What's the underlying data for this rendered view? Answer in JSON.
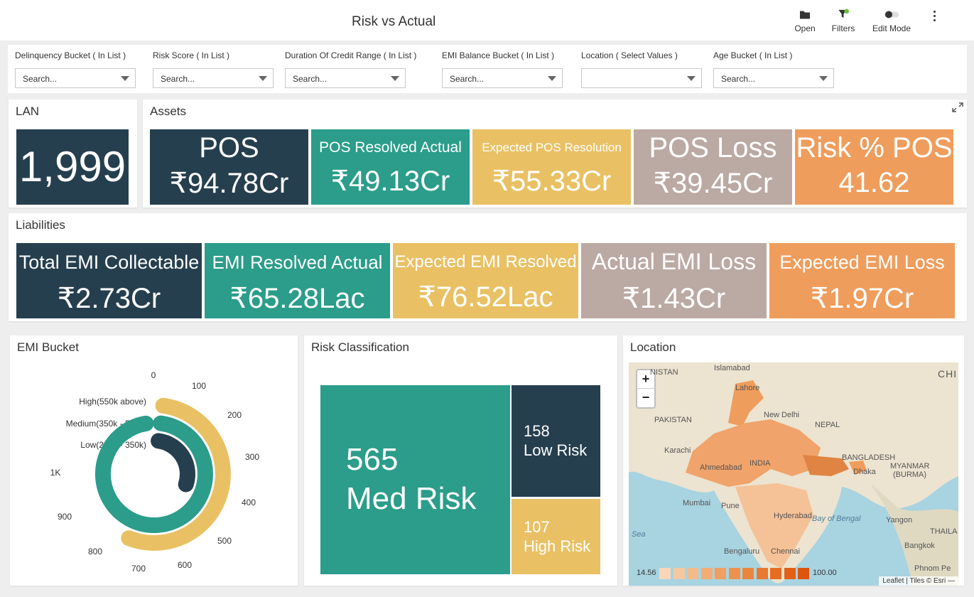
{
  "header": {
    "title": "Risk vs Actual",
    "tools": {
      "open": "Open",
      "filters": "Filters",
      "edit_mode": "Edit Mode"
    }
  },
  "filters": [
    {
      "label": "Delinquency Bucket ( In List )",
      "placeholder": "Search..."
    },
    {
      "label": "Risk Score ( In List )",
      "placeholder": "Search..."
    },
    {
      "label": "Duration Of Credit Range ( In List )",
      "placeholder": "Search..."
    },
    {
      "label": "EMI Balance Bucket ( In List )",
      "placeholder": "Search..."
    },
    {
      "label": "Location ( Select Values )",
      "placeholder": ""
    },
    {
      "label": "Age Bucket ( In List )",
      "placeholder": "Search..."
    }
  ],
  "lan": {
    "title": "LAN",
    "value": "1,999"
  },
  "assets": {
    "title": "Assets",
    "tiles": [
      {
        "label": "POS",
        "value": "₹94.78Cr",
        "color": "#263f4f"
      },
      {
        "label": "POS Resolved Actual",
        "value": "₹49.13Cr",
        "color": "#2b9d8a"
      },
      {
        "label": "Expected POS Resolution",
        "value": "₹55.33Cr",
        "color": "#e9c164"
      },
      {
        "label": "POS Loss",
        "value": "₹39.45Cr",
        "color": "#bba9a3"
      },
      {
        "label": "Risk % POS",
        "value": "41.62",
        "color": "#ef9d5c"
      }
    ]
  },
  "liabilities": {
    "title": "Liabilities",
    "tiles": [
      {
        "label": "Total EMI Collectable",
        "value": "₹2.73Cr",
        "color": "#263f4f"
      },
      {
        "label": "EMI Resolved Actual",
        "value": "₹65.28Lac",
        "color": "#2b9d8a"
      },
      {
        "label": "Expected EMI Resolved",
        "value": "₹76.52Lac",
        "color": "#e9c164"
      },
      {
        "label": "Actual EMI Loss",
        "value": "₹1.43Cr",
        "color": "#bba9a3"
      },
      {
        "label": "Expected EMI Loss",
        "value": "₹1.97Cr",
        "color": "#ef9d5c"
      }
    ]
  },
  "emi_bucket": {
    "title": "EMI Bucket",
    "chart_data": {
      "type": "radial-bar",
      "axis_max": 1000,
      "ticks": [
        "0",
        "100",
        "200",
        "300",
        "400",
        "500",
        "600",
        "700",
        "800",
        "900",
        "1K"
      ],
      "series": [
        {
          "name": "High(550k above)",
          "value": 560,
          "color": "#e9c164"
        },
        {
          "name": "Medium(350k - 550k)",
          "value": 1000,
          "color": "#2b9d8a"
        },
        {
          "name": "Low(200k - 350k)",
          "value": 300,
          "color": "#263f4f"
        }
      ]
    }
  },
  "risk_classification": {
    "title": "Risk Classification",
    "chart_data": {
      "type": "treemap",
      "items": [
        {
          "value": "565",
          "label": "Med Risk",
          "color": "#2b9d8a"
        },
        {
          "value": "158",
          "label": "Low Risk",
          "color": "#263f4f"
        },
        {
          "value": "107",
          "label": "High Risk",
          "color": "#e9c164"
        }
      ]
    }
  },
  "location": {
    "title": "Location",
    "zoom_in": "+",
    "zoom_out": "−",
    "labels": [
      "NISTAN",
      "Islamabad",
      "Lahore",
      "CHI",
      "PAKISTAN",
      "New Delhi",
      "NEPAL",
      "Karachi",
      "INDIA",
      "BANGLADESH",
      "Dhaka",
      "MYANMAR",
      "(BURMA)",
      "Ahmedabad",
      "Mumbai",
      "Pune",
      "Hyderabad",
      "Bay of Bengal",
      "Yangon",
      "Sea",
      "THAILA",
      "Bengaluru",
      "Chennai",
      "Bangkok",
      "Phnom Pe"
    ],
    "legend_min": "14.56",
    "legend_max": "100.00",
    "legend_colors": [
      "#f7d7b8",
      "#f5c9a0",
      "#f3bb8a",
      "#f1ad74",
      "#ef9f60",
      "#ed924e",
      "#eb853e",
      "#e97830",
      "#e66c22",
      "#e26016",
      "#dd550c"
    ],
    "attribution": "Leaflet | Tiles © Esri —"
  }
}
